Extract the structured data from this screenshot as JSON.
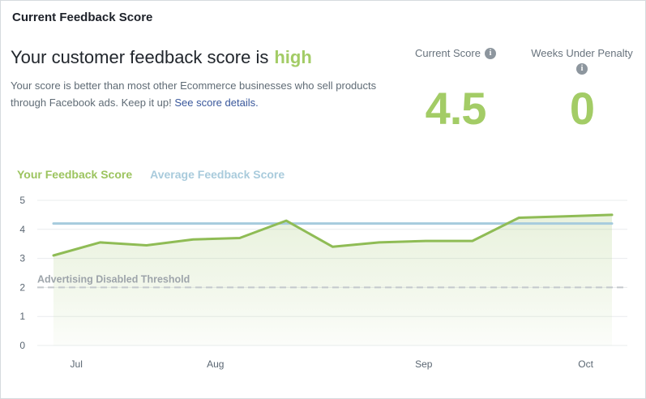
{
  "panel": {
    "title": "Current Feedback Score"
  },
  "summary": {
    "headline_prefix": "Your customer feedback score is",
    "headline_highlight": "high",
    "body_line1": "Your score is better than most other Ecommerce businesses who sell products",
    "body_line2": "through Facebook ads. Keep it up!",
    "link_text": "See score details."
  },
  "stats": [
    {
      "label": "Current Score",
      "value": "4.5",
      "icon": "info-icon"
    },
    {
      "label": "Weeks Under Penalty",
      "value": "0",
      "icon": "info-icon"
    }
  ],
  "legend": [
    {
      "label": "Your Feedback Score",
      "color": "#9CC45F"
    },
    {
      "label": "Average Feedback Score",
      "color": "#A9CBDC"
    }
  ],
  "colors": {
    "accent_green": "#A3CC66",
    "line_green": "#8FBC55",
    "line_blue": "#A6CBDD",
    "link_blue": "#39579B",
    "grid": "#E9ECEE",
    "threshold_gray": "#C4C8CC",
    "tick_text": "#5A6672"
  },
  "chart_data": {
    "type": "line",
    "title": "",
    "x_unit": "weeks (Jul - Oct)",
    "ylim": [
      0,
      5
    ],
    "y_ticks": [
      0,
      1,
      2,
      3,
      4,
      5
    ],
    "grid": true,
    "legend_position": "top-left",
    "x_tick_labels": [
      {
        "label": "Jul",
        "pos": 0.041
      },
      {
        "label": "Aug",
        "pos": 0.29
      },
      {
        "label": "Sep",
        "pos": 0.663
      },
      {
        "label": "Oct",
        "pos": 0.953
      }
    ],
    "series": [
      {
        "name": "Your Feedback Score",
        "color": "#8FBC55",
        "area": true,
        "values": [
          3.1,
          3.55,
          3.45,
          3.65,
          3.7,
          4.3,
          3.4,
          3.55,
          3.6,
          3.6,
          4.4,
          4.45,
          4.5
        ]
      },
      {
        "name": "Average Feedback Score",
        "color": "#A6CBDD",
        "area": false,
        "values": [
          4.2,
          4.2,
          4.2,
          4.2,
          4.2,
          4.2,
          4.2,
          4.2,
          4.2,
          4.2,
          4.2,
          4.2,
          4.2
        ]
      }
    ],
    "threshold": {
      "label": "Advertising Disabled Threshold",
      "value": 2
    }
  }
}
